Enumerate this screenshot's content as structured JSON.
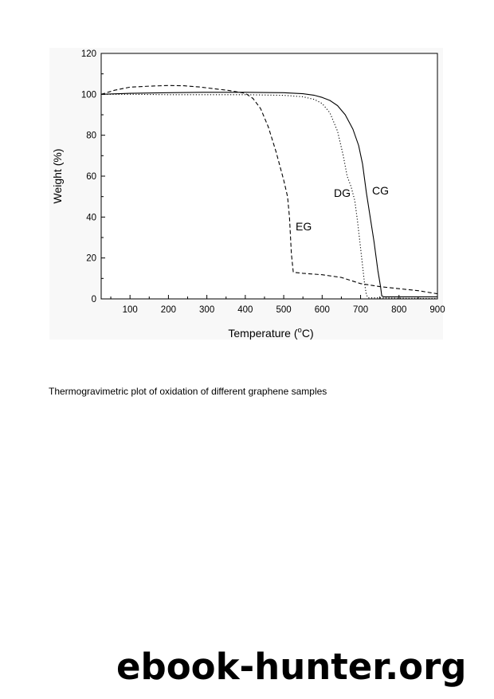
{
  "chart_data": {
    "type": "line",
    "title": "",
    "xlabel": "Temperature (°C)",
    "xlabel_parts": {
      "before": "Temperature (",
      "sup": "o",
      "after": "C)"
    },
    "ylabel": "Weight (%)",
    "xlim": [
      25,
      900
    ],
    "ylim": [
      0,
      120
    ],
    "xticks": [
      100,
      200,
      300,
      400,
      500,
      600,
      700,
      800,
      900
    ],
    "yticks": [
      0,
      20,
      40,
      60,
      80,
      100,
      120
    ],
    "grid": false,
    "legend": "none",
    "series": [
      {
        "name": "CG",
        "style": "solid",
        "x": [
          25,
          100,
          200,
          300,
          400,
          500,
          550,
          580,
          600,
          620,
          640,
          660,
          680,
          695,
          705,
          715,
          725,
          735,
          745,
          752,
          755,
          760,
          800,
          900
        ],
        "y": [
          100,
          100.5,
          100.8,
          101,
          101,
          100.8,
          100.3,
          99.5,
          98.5,
          97,
          94.5,
          90,
          83,
          75,
          66,
          52,
          40,
          28,
          14,
          6,
          1.5,
          1,
          1,
          1
        ]
      },
      {
        "name": "DG",
        "style": "dotted",
        "x": [
          25,
          100,
          200,
          300,
          400,
          500,
          550,
          580,
          600,
          620,
          640,
          655,
          665,
          675,
          685,
          692,
          700,
          710,
          715,
          720,
          750,
          800,
          900
        ],
        "y": [
          100,
          100,
          99.8,
          99.8,
          99.8,
          99.5,
          98.8,
          97.5,
          95.5,
          91,
          82,
          70,
          60,
          55,
          48,
          38,
          25,
          8,
          2,
          0.5,
          0.5,
          0.3,
          0.2
        ]
      },
      {
        "name": "EG",
        "style": "dashed",
        "x": [
          25,
          60,
          100,
          150,
          200,
          240,
          280,
          320,
          360,
          400,
          420,
          440,
          460,
          480,
          500,
          510,
          515,
          520,
          525,
          550,
          600,
          650,
          700,
          750,
          800,
          850,
          900
        ],
        "y": [
          100,
          102,
          103.5,
          104,
          104.3,
          104.2,
          103.6,
          102.7,
          101.8,
          100.5,
          98,
          93,
          84,
          72,
          58,
          50,
          40,
          22,
          13,
          12.5,
          11.8,
          10.5,
          7.5,
          6,
          5,
          4,
          2.5
        ]
      }
    ]
  },
  "caption": "Thermogravimetric plot of oxidation of different graphene samples",
  "watermark": "ebook-hunter.org"
}
